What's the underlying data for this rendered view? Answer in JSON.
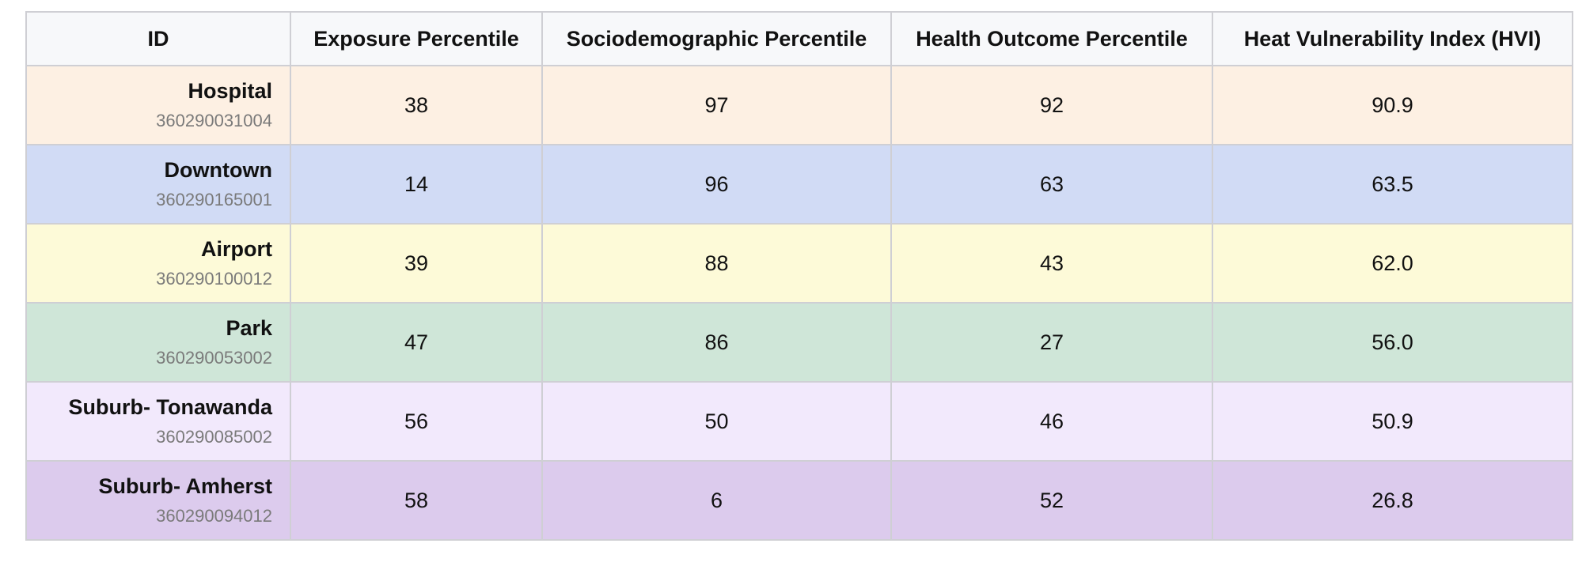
{
  "table": {
    "columns": [
      "ID",
      "Exposure Percentile",
      "Sociodemographic Percentile",
      "Health Outcome Percentile",
      "Heat Vulnerability Index (HVI)"
    ],
    "rows": [
      {
        "name": "Hospital",
        "code": "360290031004",
        "exposure": "38",
        "sociodemographic": "97",
        "health": "92",
        "hvi": "90.9",
        "color": "#fdf0e3"
      },
      {
        "name": "Downtown",
        "code": "360290165001",
        "exposure": "14",
        "sociodemographic": "96",
        "health": "63",
        "hvi": "63.5",
        "color": "#d1dbf5"
      },
      {
        "name": "Airport",
        "code": "360290100012",
        "exposure": "39",
        "sociodemographic": "88",
        "health": "43",
        "hvi": "62.0",
        "color": "#fdfad8"
      },
      {
        "name": "Park",
        "code": "360290053002",
        "exposure": "47",
        "sociodemographic": "86",
        "health": "27",
        "hvi": "56.0",
        "color": "#cfe6d8"
      },
      {
        "name": "Suburb- Tonawanda",
        "code": "360290085002",
        "exposure": "56",
        "sociodemographic": "50",
        "health": "46",
        "hvi": "50.9",
        "color": "#f2e9fc"
      },
      {
        "name": "Suburb- Amherst",
        "code": "360290094012",
        "exposure": "58",
        "sociodemographic": "6",
        "health": "52",
        "hvi": "26.8",
        "color": "#dccbed"
      }
    ]
  }
}
